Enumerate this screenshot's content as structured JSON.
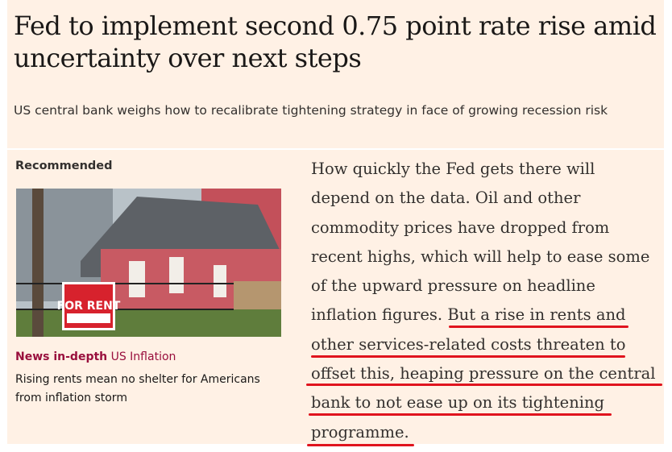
{
  "article": {
    "headline": "Fed to implement second 0.75 point rate rise amid uncertainty over next steps",
    "standfirst": "US central bank weighs how to recalibrate tightening strategy in face of growing recession risk"
  },
  "recommended": {
    "heading": "Recommended",
    "image_sign_text": "FOR RENT",
    "category": "News in-depth",
    "topic": "US Inflation",
    "title": "Rising rents mean no shelter for Americans from inflation storm"
  },
  "body_lines": [
    "How quickly the Fed gets there will",
    "depend on the data. Oil and other",
    "commodity prices have dropped from",
    "recent highs, which will help to ease some",
    "of the upward pressure on headline"
  ],
  "highlighted": {
    "lead_in": "inflation figures. ",
    "lines": [
      "But a rise in rents and",
      "other services-related costs threaten to",
      "offset this, heaping pressure on the central",
      "bank to not ease up on its tightening",
      "programme"
    ],
    "end": "."
  },
  "colors": {
    "background": "#fff1e5",
    "annotation": "#e0141e",
    "category": "#990f3d"
  }
}
